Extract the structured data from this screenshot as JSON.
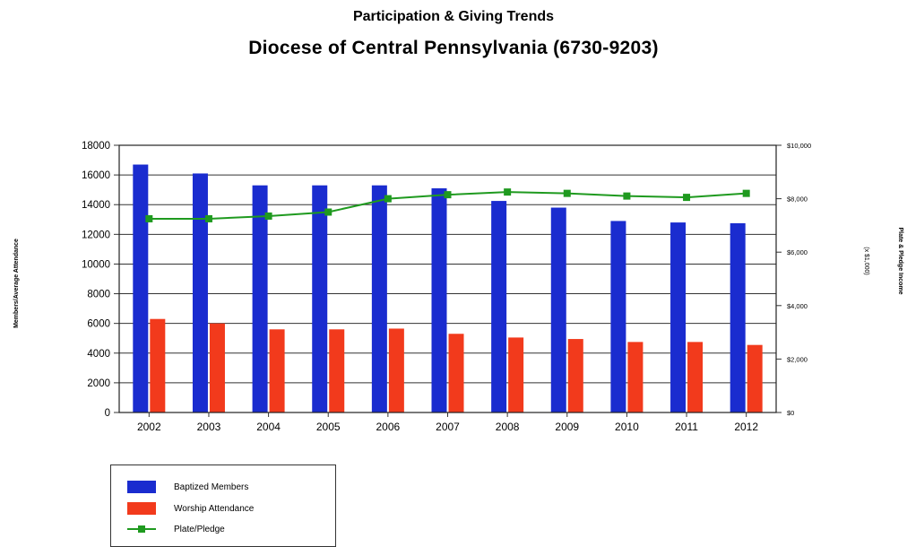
{
  "header": {
    "title": "Participation & Giving Trends",
    "subtitle": "Diocese of Central Pennsylvania (6730-9203)"
  },
  "chart_data": {
    "type": "bar",
    "categories": [
      "2002",
      "2003",
      "2004",
      "2005",
      "2006",
      "2007",
      "2008",
      "2009",
      "2010",
      "2011",
      "2012"
    ],
    "series": [
      {
        "name": "Baptized Members",
        "type": "bar",
        "axis": "left",
        "color": "#1a2ccf",
        "values": [
          16700,
          16100,
          15300,
          15300,
          15300,
          15100,
          14250,
          13800,
          12900,
          12800,
          12750
        ]
      },
      {
        "name": "Worship Attendance",
        "type": "bar",
        "axis": "left",
        "color": "#f23a1c",
        "values": [
          6300,
          6000,
          5600,
          5600,
          5650,
          5300,
          5050,
          4950,
          4750,
          4750,
          4550
        ]
      },
      {
        "name": "Plate/Pledge",
        "type": "line",
        "axis": "right",
        "color": "#1f9a1f",
        "values": [
          7250,
          7250,
          7350,
          7500,
          8000,
          8150,
          8250,
          8200,
          8100,
          8050,
          8200
        ]
      }
    ],
    "ylabel": "Members/Average Attendance",
    "y2label": "Plate & Pledge Income",
    "y2unit": "(x $1,000)",
    "ylim": [
      0,
      18000
    ],
    "yticks": [
      "0",
      "2000",
      "4000",
      "6000",
      "8000",
      "10000",
      "12000",
      "14000",
      "16000",
      "18000"
    ],
    "y2lim": [
      0,
      10000
    ],
    "y2ticks": [
      "$0",
      "$2,000",
      "$4,000",
      "$6,000",
      "$8,000",
      "$10,000"
    ],
    "grid": true,
    "legend_position": "bottom-left"
  }
}
